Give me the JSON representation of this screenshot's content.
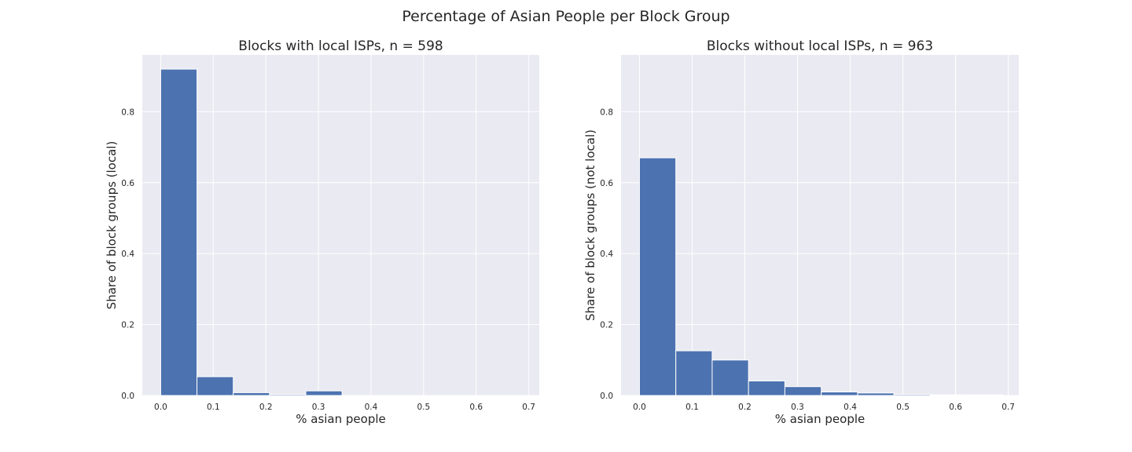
{
  "figure": {
    "suptitle": "Percentage of Asian People per Block Group"
  },
  "colors": {
    "bar": "#4c72b0",
    "plot_background": "#eaeaf2",
    "grid": "#ffffff"
  },
  "chart_data": [
    {
      "type": "bar",
      "title": "Blocks with local ISPs, n = 598",
      "xlabel": "% asian people",
      "ylabel": "Share of block groups (local)",
      "xlim": [
        -0.035,
        0.72
      ],
      "ylim": [
        0,
        0.96
      ],
      "grid": true,
      "xticks": [
        0.0,
        0.1,
        0.2,
        0.3,
        0.4,
        0.5,
        0.6,
        0.7
      ],
      "yticks": [
        0.0,
        0.2,
        0.4,
        0.6,
        0.8
      ],
      "bins": [
        {
          "start": 0.0,
          "end": 0.069,
          "value": 0.92
        },
        {
          "start": 0.069,
          "end": 0.138,
          "value": 0.053
        },
        {
          "start": 0.138,
          "end": 0.207,
          "value": 0.008
        },
        {
          "start": 0.207,
          "end": 0.276,
          "value": 0.003
        },
        {
          "start": 0.276,
          "end": 0.345,
          "value": 0.013
        }
      ]
    },
    {
      "type": "bar",
      "title": "Blocks without local ISPs, n = 963",
      "xlabel": "% asian people",
      "ylabel": "Share of block groups (not local)",
      "xlim": [
        -0.035,
        0.72
      ],
      "ylim": [
        0,
        0.96
      ],
      "grid": true,
      "xticks": [
        0.0,
        0.1,
        0.2,
        0.3,
        0.4,
        0.5,
        0.6,
        0.7
      ],
      "yticks": [
        0.0,
        0.2,
        0.4,
        0.6,
        0.8
      ],
      "bins": [
        {
          "start": 0.0,
          "end": 0.069,
          "value": 0.67
        },
        {
          "start": 0.069,
          "end": 0.138,
          "value": 0.126
        },
        {
          "start": 0.138,
          "end": 0.207,
          "value": 0.1
        },
        {
          "start": 0.207,
          "end": 0.276,
          "value": 0.041
        },
        {
          "start": 0.276,
          "end": 0.345,
          "value": 0.025
        },
        {
          "start": 0.345,
          "end": 0.414,
          "value": 0.01
        },
        {
          "start": 0.414,
          "end": 0.483,
          "value": 0.007
        },
        {
          "start": 0.483,
          "end": 0.552,
          "value": 0.003
        },
        {
          "start": 0.552,
          "end": 0.621,
          "value": 0.002
        },
        {
          "start": 0.621,
          "end": 0.69,
          "value": 0.002
        }
      ]
    }
  ]
}
